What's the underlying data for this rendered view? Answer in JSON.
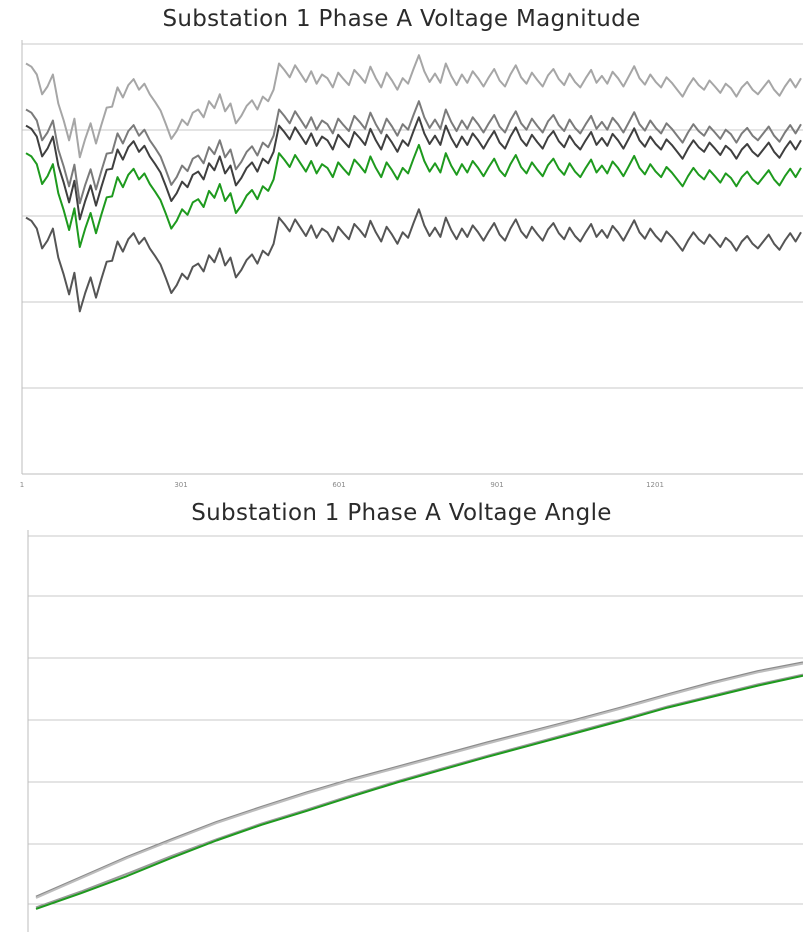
{
  "chart_data": [
    {
      "type": "line",
      "title": "Substation 1 Phase A Voltage Magnitude",
      "x_ticks": [
        "1",
        "301",
        "601",
        "901",
        "1201"
      ],
      "x_range": [
        1,
        1500
      ],
      "grid": "horizontal",
      "series": [
        {
          "color": "#a6a6a6",
          "offset": 0,
          "values": [
            0.62,
            0.55,
            0.38,
            -0.05,
            0.12,
            0.38,
            -0.25,
            -0.62,
            -1.05,
            -0.58,
            -1.42,
            -1.02,
            -0.68,
            -1.12,
            -0.72,
            -0.34,
            -0.32,
            0.1,
            -0.12,
            0.15,
            0.28,
            0.05,
            0.18,
            -0.05,
            -0.22,
            -0.4,
            -0.7,
            -1.02,
            -0.85,
            -0.6,
            -0.72,
            -0.45,
            -0.38,
            -0.55,
            -0.2,
            -0.35,
            -0.05,
            -0.42,
            -0.25,
            -0.68,
            -0.52,
            -0.3,
            -0.18,
            -0.38,
            -0.1,
            -0.2,
            0.05,
            0.62,
            0.48,
            0.32,
            0.58,
            0.4,
            0.22,
            0.45,
            0.18,
            0.38,
            0.3,
            0.1,
            0.42,
            0.28,
            0.15,
            0.48,
            0.35,
            0.2,
            0.55,
            0.3,
            0.1,
            0.42,
            0.25,
            0.05,
            0.3,
            0.18,
            0.5,
            0.8,
            0.45,
            0.22,
            0.4,
            0.2,
            0.62,
            0.35,
            0.15,
            0.38,
            0.2,
            0.45,
            0.3,
            0.12,
            0.32,
            0.5,
            0.25,
            0.12,
            0.38,
            0.58,
            0.32,
            0.18,
            0.42,
            0.26,
            0.12,
            0.36,
            0.5,
            0.28,
            0.15,
            0.4,
            0.22,
            0.1,
            0.3,
            0.48,
            0.2,
            0.35,
            0.18,
            0.44,
            0.3,
            0.12,
            0.34,
            0.56,
            0.3,
            0.16,
            0.38,
            0.22,
            0.1,
            0.32,
            0.2,
            0.05,
            -0.1,
            0.12,
            0.3,
            0.15,
            0.05,
            0.25,
            0.12,
            -0.02,
            0.18,
            0.08,
            -0.1,
            0.1,
            0.22,
            0.05,
            -0.05,
            0.1,
            0.25,
            0.05,
            -0.08,
            0.12,
            0.28,
            0.1,
            0.3
          ]
        },
        {
          "color": "#7b7b7b",
          "offset": -1,
          "values": [
            0.62,
            0.55,
            0.38,
            -0.05,
            0.12,
            0.38,
            -0.25,
            -0.62,
            -1.05,
            -0.58,
            -1.42,
            -1.02,
            -0.68,
            -1.12,
            -0.72,
            -0.34,
            -0.32,
            0.1,
            -0.12,
            0.15,
            0.28,
            0.05,
            0.18,
            -0.05,
            -0.22,
            -0.4,
            -0.7,
            -1.02,
            -0.85,
            -0.6,
            -0.72,
            -0.45,
            -0.38,
            -0.55,
            -0.2,
            -0.35,
            -0.05,
            -0.42,
            -0.25,
            -0.68,
            -0.52,
            -0.3,
            -0.18,
            -0.38,
            -0.1,
            -0.2,
            0.05,
            0.62,
            0.48,
            0.32,
            0.58,
            0.4,
            0.22,
            0.45,
            0.18,
            0.38,
            0.3,
            0.1,
            0.42,
            0.28,
            0.15,
            0.48,
            0.35,
            0.2,
            0.55,
            0.3,
            0.1,
            0.42,
            0.25,
            0.05,
            0.3,
            0.18,
            0.5,
            0.8,
            0.45,
            0.22,
            0.4,
            0.2,
            0.62,
            0.35,
            0.15,
            0.38,
            0.2,
            0.45,
            0.3,
            0.12,
            0.32,
            0.5,
            0.25,
            0.12,
            0.38,
            0.58,
            0.32,
            0.18,
            0.42,
            0.26,
            0.12,
            0.36,
            0.5,
            0.28,
            0.15,
            0.4,
            0.22,
            0.1,
            0.3,
            0.48,
            0.2,
            0.35,
            0.18,
            0.44,
            0.3,
            0.12,
            0.34,
            0.56,
            0.3,
            0.16,
            0.38,
            0.22,
            0.1,
            0.32,
            0.2,
            0.05,
            -0.1,
            0.12,
            0.3,
            0.15,
            0.05,
            0.25,
            0.12,
            -0.02,
            0.18,
            0.08,
            -0.1,
            0.1,
            0.22,
            0.05,
            -0.05,
            0.1,
            0.25,
            0.05,
            -0.08,
            0.12,
            0.28,
            0.1,
            0.3
          ]
        },
        {
          "color": "#3f3f3f",
          "offset": -1.35,
          "values": [
            0.62,
            0.55,
            0.38,
            -0.05,
            0.12,
            0.38,
            -0.25,
            -0.62,
            -1.05,
            -0.58,
            -1.42,
            -1.02,
            -0.68,
            -1.12,
            -0.72,
            -0.34,
            -0.32,
            0.1,
            -0.12,
            0.15,
            0.28,
            0.05,
            0.18,
            -0.05,
            -0.22,
            -0.4,
            -0.7,
            -1.02,
            -0.85,
            -0.6,
            -0.72,
            -0.45,
            -0.38,
            -0.55,
            -0.2,
            -0.35,
            -0.05,
            -0.42,
            -0.25,
            -0.68,
            -0.52,
            -0.3,
            -0.18,
            -0.38,
            -0.1,
            -0.2,
            0.05,
            0.62,
            0.48,
            0.32,
            0.58,
            0.4,
            0.22,
            0.45,
            0.18,
            0.38,
            0.3,
            0.1,
            0.42,
            0.28,
            0.15,
            0.48,
            0.35,
            0.2,
            0.55,
            0.3,
            0.1,
            0.42,
            0.25,
            0.05,
            0.3,
            0.18,
            0.5,
            0.8,
            0.45,
            0.22,
            0.4,
            0.2,
            0.62,
            0.35,
            0.15,
            0.38,
            0.2,
            0.45,
            0.3,
            0.12,
            0.32,
            0.5,
            0.25,
            0.12,
            0.38,
            0.58,
            0.32,
            0.18,
            0.42,
            0.26,
            0.12,
            0.36,
            0.5,
            0.28,
            0.15,
            0.4,
            0.22,
            0.1,
            0.3,
            0.48,
            0.2,
            0.35,
            0.18,
            0.44,
            0.3,
            0.12,
            0.34,
            0.56,
            0.3,
            0.16,
            0.38,
            0.22,
            0.1,
            0.32,
            0.2,
            0.05,
            -0.1,
            0.12,
            0.3,
            0.15,
            0.05,
            0.25,
            0.12,
            -0.02,
            0.18,
            0.08,
            -0.1,
            0.1,
            0.22,
            0.05,
            -0.05,
            0.1,
            0.25,
            0.05,
            -0.08,
            0.12,
            0.28,
            0.1,
            0.3
          ]
        },
        {
          "color": "#1e9a1e",
          "offset": -1.95,
          "values": [
            0.62,
            0.55,
            0.38,
            -0.05,
            0.12,
            0.38,
            -0.25,
            -0.62,
            -1.05,
            -0.58,
            -1.42,
            -1.02,
            -0.68,
            -1.12,
            -0.72,
            -0.34,
            -0.32,
            0.1,
            -0.12,
            0.15,
            0.28,
            0.05,
            0.18,
            -0.05,
            -0.22,
            -0.4,
            -0.7,
            -1.02,
            -0.85,
            -0.6,
            -0.72,
            -0.45,
            -0.38,
            -0.55,
            -0.2,
            -0.35,
            -0.05,
            -0.42,
            -0.25,
            -0.68,
            -0.52,
            -0.3,
            -0.18,
            -0.38,
            -0.1,
            -0.2,
            0.05,
            0.62,
            0.48,
            0.32,
            0.58,
            0.4,
            0.22,
            0.45,
            0.18,
            0.38,
            0.3,
            0.1,
            0.42,
            0.28,
            0.15,
            0.48,
            0.35,
            0.2,
            0.55,
            0.3,
            0.1,
            0.42,
            0.25,
            0.05,
            0.3,
            0.18,
            0.5,
            0.8,
            0.45,
            0.22,
            0.4,
            0.2,
            0.62,
            0.35,
            0.15,
            0.38,
            0.2,
            0.45,
            0.3,
            0.12,
            0.32,
            0.5,
            0.25,
            0.12,
            0.38,
            0.58,
            0.32,
            0.18,
            0.42,
            0.26,
            0.12,
            0.36,
            0.5,
            0.28,
            0.15,
            0.4,
            0.22,
            0.1,
            0.3,
            0.48,
            0.2,
            0.35,
            0.18,
            0.44,
            0.3,
            0.12,
            0.34,
            0.56,
            0.3,
            0.16,
            0.38,
            0.22,
            0.1,
            0.32,
            0.2,
            0.05,
            -0.1,
            0.12,
            0.3,
            0.15,
            0.05,
            0.25,
            0.12,
            -0.02,
            0.18,
            0.08,
            -0.1,
            0.1,
            0.22,
            0.05,
            -0.05,
            0.1,
            0.25,
            0.05,
            -0.08,
            0.12,
            0.28,
            0.1,
            0.3
          ]
        },
        {
          "color": "#555555",
          "offset": -3.35,
          "values": [
            0.62,
            0.55,
            0.38,
            -0.05,
            0.12,
            0.38,
            -0.25,
            -0.62,
            -1.05,
            -0.58,
            -1.42,
            -1.02,
            -0.68,
            -1.12,
            -0.72,
            -0.34,
            -0.32,
            0.1,
            -0.12,
            0.15,
            0.28,
            0.05,
            0.18,
            -0.05,
            -0.22,
            -0.4,
            -0.7,
            -1.02,
            -0.85,
            -0.6,
            -0.72,
            -0.45,
            -0.38,
            -0.55,
            -0.2,
            -0.35,
            -0.05,
            -0.42,
            -0.25,
            -0.68,
            -0.52,
            -0.3,
            -0.18,
            -0.38,
            -0.1,
            -0.2,
            0.05,
            0.62,
            0.48,
            0.32,
            0.58,
            0.4,
            0.22,
            0.45,
            0.18,
            0.38,
            0.3,
            0.1,
            0.42,
            0.28,
            0.15,
            0.48,
            0.35,
            0.2,
            0.55,
            0.3,
            0.1,
            0.42,
            0.25,
            0.05,
            0.3,
            0.18,
            0.5,
            0.8,
            0.45,
            0.22,
            0.4,
            0.2,
            0.62,
            0.35,
            0.15,
            0.38,
            0.2,
            0.45,
            0.3,
            0.12,
            0.32,
            0.5,
            0.25,
            0.12,
            0.38,
            0.58,
            0.32,
            0.18,
            0.42,
            0.26,
            0.12,
            0.36,
            0.5,
            0.28,
            0.15,
            0.4,
            0.22,
            0.1,
            0.3,
            0.48,
            0.2,
            0.35,
            0.18,
            0.44,
            0.3,
            0.12,
            0.34,
            0.56,
            0.3,
            0.16,
            0.38,
            0.22,
            0.1,
            0.32,
            0.2,
            0.05,
            -0.1,
            0.12,
            0.3,
            0.15,
            0.05,
            0.25,
            0.12,
            -0.02,
            0.18,
            0.08,
            -0.1,
            0.1,
            0.22,
            0.05,
            -0.05,
            0.1,
            0.25,
            0.05,
            -0.08,
            0.12,
            0.28,
            0.1,
            0.3
          ]
        }
      ]
    },
    {
      "type": "line",
      "title": "Substation 1 Phase A Voltage Angle",
      "grid": "horizontal",
      "series": [
        {
          "color": "#8c8c8c",
          "values": [
            0.32,
            1.0,
            1.68,
            2.3,
            2.9,
            3.42,
            3.92,
            4.38,
            4.8,
            5.22,
            5.64,
            6.04,
            6.44,
            6.86,
            7.3,
            7.72,
            8.1,
            8.4
          ]
        },
        {
          "color": "#bdbdbd",
          "values": [
            0.28,
            0.96,
            1.64,
            2.26,
            2.86,
            3.38,
            3.88,
            4.34,
            4.76,
            5.18,
            5.6,
            6.0,
            6.4,
            6.82,
            7.26,
            7.68,
            8.06,
            8.36
          ]
        },
        {
          "color": "#9a9a9a",
          "values": [
            -0.05,
            0.5,
            1.1,
            1.72,
            2.3,
            2.84,
            3.32,
            3.82,
            4.3,
            4.74,
            5.18,
            5.6,
            6.02,
            6.44,
            6.88,
            7.26,
            7.64,
            7.98
          ]
        },
        {
          "color": "#1e9a1e",
          "values": [
            -0.1,
            0.44,
            1.02,
            1.66,
            2.26,
            2.8,
            3.28,
            3.78,
            4.26,
            4.7,
            5.14,
            5.56,
            5.98,
            6.4,
            6.84,
            7.22,
            7.6,
            7.94
          ]
        }
      ]
    }
  ]
}
